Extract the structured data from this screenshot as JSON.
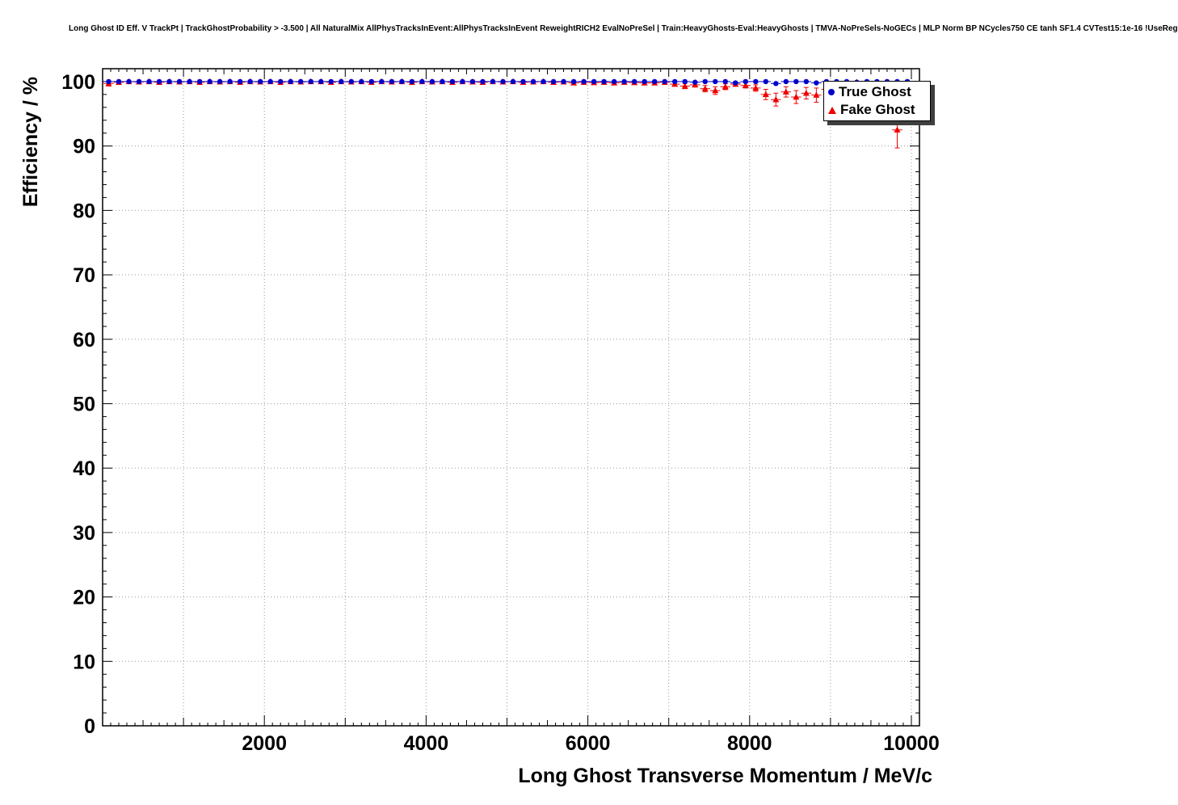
{
  "title": "Long Ghost ID Eff. V TrackPt | TrackGhostProbability > -3.500 | All NaturalMix AllPhysTracksInEvent:AllPhysTracksInEvent ReweightRICH2 EvalNoPreSel | Train:HeavyGhosts-Eval:HeavyGhosts | TMVA-NoPreSels-NoGECs | MLP Norm BP NCycles750 CE tanh SF1.4 CVTest15:1e-16 !UseReg",
  "colors": {
    "frame": "#000000",
    "grid": "#999999",
    "true_ghost": "#0000cc",
    "fake_ghost": "#ee0000"
  },
  "chart_data": {
    "type": "scatter",
    "title": "Long Ghost ID Eff. V TrackPt | TrackGhostProbability > -3.500 | All NaturalMix AllPhysTracksInEvent:AllPhysTracksInEvent ReweightRICH2 EvalNoPreSel | Train:HeavyGhosts-Eval:HeavyGhosts | TMVA-NoPreSels-NoGECs | MLP Norm BP NCycles750 CE tanh SF1.4 CVTest15:1e-16 !UseReg",
    "xlabel": "Long Ghost Transverse Momentum / MeV/c",
    "ylabel": "Efficiency / %",
    "xlim": [
      0,
      10100
    ],
    "ylim": [
      0,
      102
    ],
    "x_major_ticks": [
      2000,
      4000,
      6000,
      8000,
      10000
    ],
    "y_major_ticks": [
      0,
      10,
      20,
      30,
      40,
      50,
      60,
      70,
      80,
      90,
      100
    ],
    "grid": "dotted",
    "legend_position": "top-right",
    "x_bin_halfwidth": 62.5,
    "x": [
      75,
      200,
      325,
      450,
      575,
      700,
      825,
      950,
      1075,
      1200,
      1325,
      1450,
      1575,
      1700,
      1825,
      1950,
      2075,
      2200,
      2325,
      2450,
      2575,
      2700,
      2825,
      2950,
      3075,
      3200,
      3325,
      3450,
      3575,
      3700,
      3825,
      3950,
      4075,
      4200,
      4325,
      4450,
      4575,
      4700,
      4825,
      4950,
      5075,
      5200,
      5325,
      5450,
      5575,
      5700,
      5825,
      5950,
      6075,
      6200,
      6325,
      6450,
      6575,
      6700,
      6825,
      6950,
      7075,
      7200,
      7325,
      7450,
      7575,
      7700,
      7825,
      7950,
      8075,
      8200,
      8325,
      8450,
      8575,
      8700,
      8825,
      8950,
      9075,
      9200,
      9325,
      9450,
      9575,
      9700,
      9825,
      9950
    ],
    "series": [
      {
        "name": "True Ghost",
        "marker": "circle",
        "color": "#0000cc",
        "y": [
          100,
          100,
          100,
          100,
          100,
          100,
          100,
          100,
          100,
          100,
          100,
          100,
          100,
          100,
          100,
          100,
          100,
          100,
          100,
          100,
          100,
          100,
          100,
          100,
          100,
          100,
          100,
          100,
          100,
          100,
          100,
          100,
          100,
          100,
          100,
          100,
          100,
          100,
          100,
          100,
          100,
          100,
          100,
          100,
          100,
          100,
          100,
          100,
          100,
          100,
          100,
          100,
          100,
          100,
          100,
          100,
          100,
          100,
          99.9,
          100,
          100,
          100,
          99.8,
          100,
          100,
          100,
          99.7,
          100,
          100,
          100,
          99.8,
          100,
          100,
          100,
          99.9,
          100,
          100,
          100,
          100,
          100
        ],
        "yerr": 0.05
      },
      {
        "name": "Fake Ghost",
        "marker": "triangle",
        "color": "#ee0000",
        "y": [
          99.7,
          99.9,
          100,
          99.95,
          100,
          99.9,
          100,
          99.95,
          100,
          99.9,
          100,
          99.95,
          100,
          99.9,
          100,
          99.95,
          100,
          99.9,
          100,
          99.95,
          100,
          100,
          99.9,
          100,
          99.95,
          100,
          99.9,
          100,
          99.95,
          100,
          99.9,
          100,
          99.95,
          100,
          99.9,
          100,
          99.95,
          99.9,
          100,
          99.95,
          100,
          99.9,
          99.95,
          100,
          99.9,
          99.95,
          99.8,
          99.9,
          99.85,
          99.9,
          99.8,
          99.9,
          99.85,
          99.8,
          99.8,
          99.9,
          99.6,
          99.3,
          99.5,
          98.9,
          98.6,
          99.2,
          99.6,
          99.4,
          99.0,
          98.0,
          97.2,
          98.4,
          97.6,
          98.2,
          97.9,
          98.8,
          99.6,
          99.8,
          99.9,
          99.8,
          99.9,
          99.9,
          92.5,
          99.9
        ],
        "yerr": [
          0.4,
          0.2,
          0.1,
          0.1,
          0.05,
          0.1,
          0.05,
          0.1,
          0.05,
          0.1,
          0.05,
          0.05,
          0.05,
          0.1,
          0.05,
          0.05,
          0.05,
          0.1,
          0.05,
          0.05,
          0.05,
          0.05,
          0.1,
          0.05,
          0.05,
          0.05,
          0.1,
          0.05,
          0.05,
          0.05,
          0.1,
          0.05,
          0.05,
          0.05,
          0.1,
          0.05,
          0.1,
          0.1,
          0.05,
          0.1,
          0.05,
          0.1,
          0.1,
          0.05,
          0.15,
          0.1,
          0.2,
          0.15,
          0.2,
          0.15,
          0.2,
          0.15,
          0.2,
          0.25,
          0.25,
          0.2,
          0.3,
          0.4,
          0.35,
          0.5,
          0.6,
          0.45,
          0.3,
          0.4,
          0.5,
          0.8,
          1.0,
          0.8,
          1.0,
          0.9,
          1.1,
          0.8,
          0.4,
          0.3,
          0.2,
          0.3,
          0.2,
          0.2,
          2.8,
          0.3
        ]
      }
    ]
  }
}
